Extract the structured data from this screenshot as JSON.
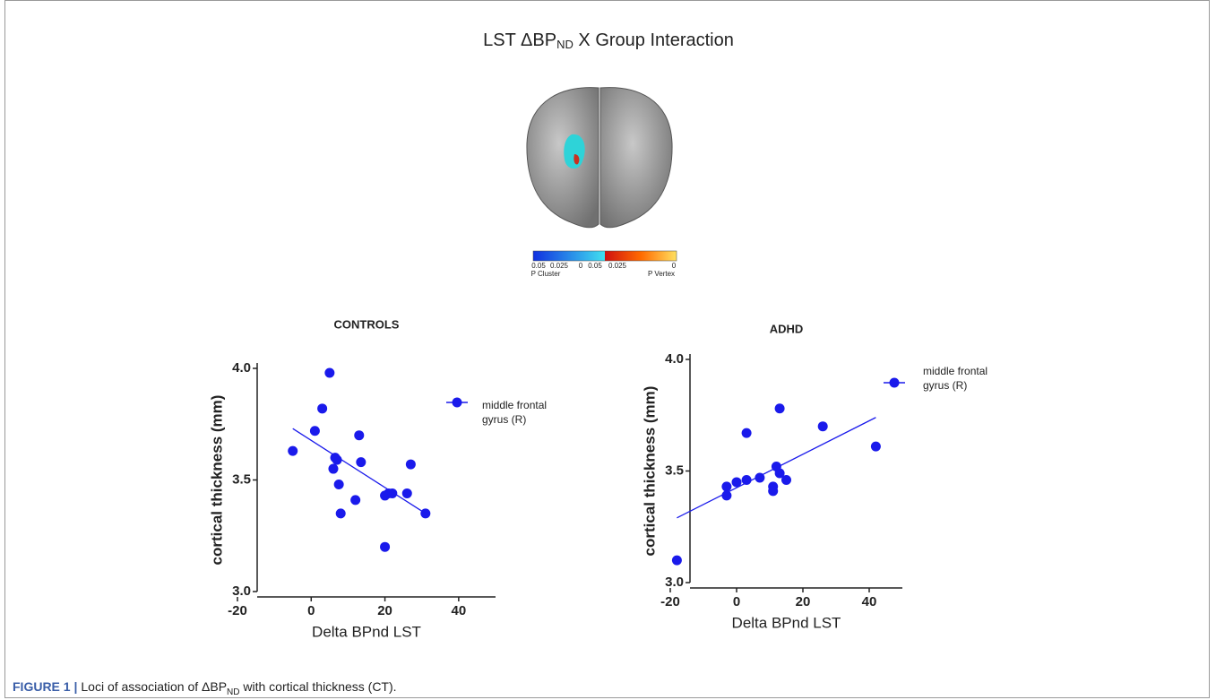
{
  "figure": {
    "title": {
      "main": "LST ΔBP",
      "sub": "ND",
      "rest": " X Group  Interaction"
    },
    "colorbar": {
      "left_ticks": [
        0.05,
        0.025,
        0
      ],
      "right_ticks": [
        0.05,
        0.025,
        0
      ],
      "left_label": "P Cluster",
      "right_label": "P Vertex"
    },
    "caption": {
      "label": "FIGURE 1 |",
      "text": "Loci of association of ΔBP",
      "sub": "ND",
      "rest": " with cortical thickness (CT)."
    }
  },
  "chart_data": [
    {
      "type": "scatter",
      "title": "CONTROLS",
      "xlabel": "Delta BPnd LST",
      "ylabel": "cortical thickness (mm)",
      "x": [
        -5,
        1,
        3,
        5,
        6,
        6.5,
        7,
        7.5,
        8,
        12,
        13,
        13.5,
        20,
        20,
        21,
        22,
        26,
        27,
        31
      ],
      "series": [
        {
          "name": "middle frontal gyrus (R)",
          "color": "#1a1aeb",
          "values": [
            3.63,
            3.72,
            3.82,
            3.98,
            3.55,
            3.6,
            3.59,
            3.48,
            3.35,
            3.41,
            3.7,
            3.58,
            3.2,
            3.43,
            3.44,
            3.44,
            3.44,
            3.57,
            3.35
          ]
        }
      ],
      "fit": {
        "x": [
          -5,
          31
        ],
        "y": [
          3.73,
          3.35
        ]
      },
      "xlim": [
        -20,
        50
      ],
      "ylim": [
        3,
        4
      ],
      "xticks": [
        -20,
        0,
        20,
        40
      ],
      "yticks": [
        {
          "value": 3,
          "label": "3.0"
        },
        {
          "value": 3.5,
          "label": "3.5"
        },
        {
          "value": 4,
          "label": "4.0"
        }
      ],
      "legend": "right"
    },
    {
      "type": "scatter",
      "title": "ADHD",
      "xlabel": "Delta BPnd LST",
      "ylabel": "cortical thickness (mm)",
      "x": [
        -18,
        -3,
        -3,
        0,
        3,
        3,
        7,
        11,
        11,
        12,
        13,
        13,
        15,
        26,
        42
      ],
      "series": [
        {
          "name": "middle frontal gyrus (R)",
          "color": "#1a1aeb",
          "values": [
            3.1,
            3.39,
            3.43,
            3.45,
            3.46,
            3.67,
            3.47,
            3.43,
            3.41,
            3.52,
            3.49,
            3.78,
            3.46,
            3.7,
            3.61
          ]
        }
      ],
      "fit": {
        "x": [
          -18,
          42
        ],
        "y": [
          3.29,
          3.74
        ]
      },
      "xlim": [
        -20,
        50
      ],
      "ylim": [
        3,
        4
      ],
      "xticks": [
        -20,
        0,
        20,
        40
      ],
      "yticks": [
        {
          "value": 3,
          "label": "3.0"
        },
        {
          "value": 3.5,
          "label": "3.5"
        },
        {
          "value": 4,
          "label": "4.0"
        }
      ],
      "legend": "right"
    }
  ]
}
